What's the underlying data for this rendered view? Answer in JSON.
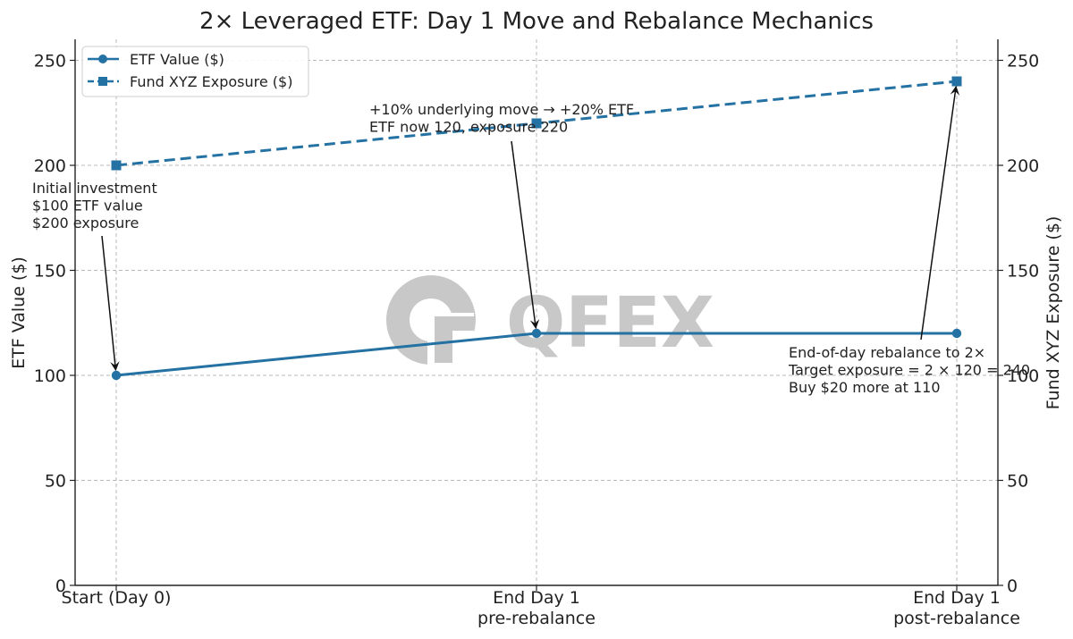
{
  "chart_data": {
    "type": "line",
    "title": "2× Leveraged ETF: Day 1 Move and Rebalance Mechanics",
    "categories": [
      [
        "Start (Day 0)"
      ],
      [
        "End Day 1",
        "pre-rebalance"
      ],
      [
        "End Day 1",
        "post-rebalance"
      ]
    ],
    "xlabel": "",
    "ylabel": "ETF Value ($)",
    "ylabel_right": "Fund XYZ Exposure ($)",
    "ylim": [
      0,
      260
    ],
    "ylim_right": [
      0,
      260
    ],
    "yticks": [
      0,
      50,
      100,
      150,
      200,
      250
    ],
    "grid": true,
    "legend_position": "top-left",
    "series": [
      {
        "name": "ETF Value ($)",
        "values": [
          100,
          120,
          120
        ],
        "axis": "left",
        "style": "solid",
        "marker": "circle",
        "color": "#2471a3"
      },
      {
        "name": "Fund XYZ Exposure ($)",
        "values": [
          200,
          220,
          240
        ],
        "axis": "right",
        "style": "dashed",
        "marker": "square",
        "color": "#2471a3"
      }
    ],
    "annotations": [
      {
        "lines": [
          "Initial investment",
          "$100 ETF value",
          "$200 exposure"
        ],
        "point_index": 0,
        "series": 0
      },
      {
        "lines": [
          "+10% underlying move → +20% ETF",
          "ETF now 120, exposure 220"
        ],
        "point_index": 1,
        "series": 0
      },
      {
        "lines": [
          "End-of-day rebalance to 2×",
          "Target exposure = 2 × 120 = 240",
          "Buy $20 more at 110"
        ],
        "point_index": 2,
        "series": 1
      }
    ]
  },
  "watermark": {
    "text": "QFEX"
  }
}
